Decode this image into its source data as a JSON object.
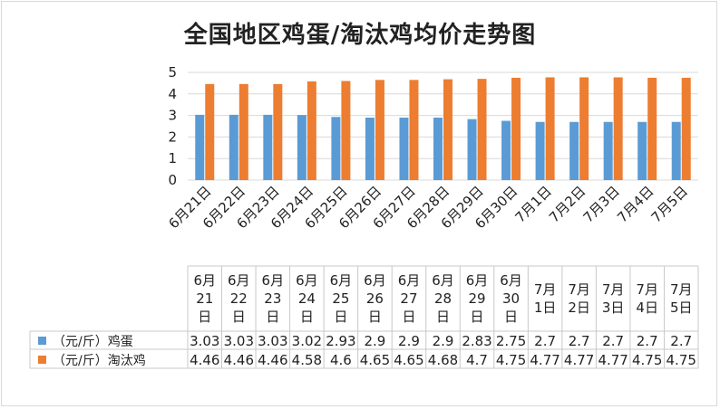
{
  "chart_data": {
    "type": "bar",
    "title": "全国地区鸡蛋/淘汰鸡均价走势图",
    "categories": [
      "6月21日",
      "6月22日",
      "6月23日",
      "6月24日",
      "6月25日",
      "6月26日",
      "6月27日",
      "6月28日",
      "6月29日",
      "6月30日",
      "7月1日",
      "7月2日",
      "7月3日",
      "7月4日",
      "7月5日"
    ],
    "series": [
      {
        "name": "（元/斤）鸡蛋",
        "color": "#5b9bd5",
        "values": [
          3.03,
          3.03,
          3.03,
          3.02,
          2.93,
          2.9,
          2.9,
          2.9,
          2.83,
          2.75,
          2.7,
          2.7,
          2.7,
          2.7,
          2.7
        ],
        "labels": [
          "3.03",
          "3.03",
          "3.03",
          "3.02",
          "2.93",
          "2.9",
          "2.9",
          "2.9",
          "2.83",
          "2.75",
          "2.7",
          "2.7",
          "2.7",
          "2.7",
          "2.7"
        ]
      },
      {
        "name": "（元/斤）淘汰鸡",
        "color": "#ed7d31",
        "values": [
          4.46,
          4.46,
          4.46,
          4.58,
          4.6,
          4.65,
          4.65,
          4.68,
          4.7,
          4.75,
          4.77,
          4.77,
          4.77,
          4.75,
          4.75
        ],
        "labels": [
          "4.46",
          "4.46",
          "4.46",
          "4.58",
          "4.6",
          "4.65",
          "4.65",
          "4.68",
          "4.7",
          "4.75",
          "4.77",
          "4.77",
          "4.77",
          "4.75",
          "4.75"
        ]
      }
    ],
    "ylim": [
      0,
      5
    ],
    "yticks": [
      "0",
      "1",
      "2",
      "3",
      "4",
      "5"
    ],
    "grid": true,
    "legend": "data-table",
    "table_headers": [
      [
        "6月",
        "21",
        "日"
      ],
      [
        "6月",
        "22",
        "日"
      ],
      [
        "6月",
        "23",
        "日"
      ],
      [
        "6月",
        "24",
        "日"
      ],
      [
        "6月",
        "25",
        "日"
      ],
      [
        "6月",
        "26",
        "日"
      ],
      [
        "6月",
        "27",
        "日"
      ],
      [
        "6月",
        "28",
        "日"
      ],
      [
        "6月",
        "29",
        "日"
      ],
      [
        "6月",
        "30",
        "日"
      ],
      [
        "7月",
        "1日"
      ],
      [
        "7月",
        "2日"
      ],
      [
        "7月",
        "3日"
      ],
      [
        "7月",
        "4日"
      ],
      [
        "7月",
        "5日"
      ]
    ]
  }
}
